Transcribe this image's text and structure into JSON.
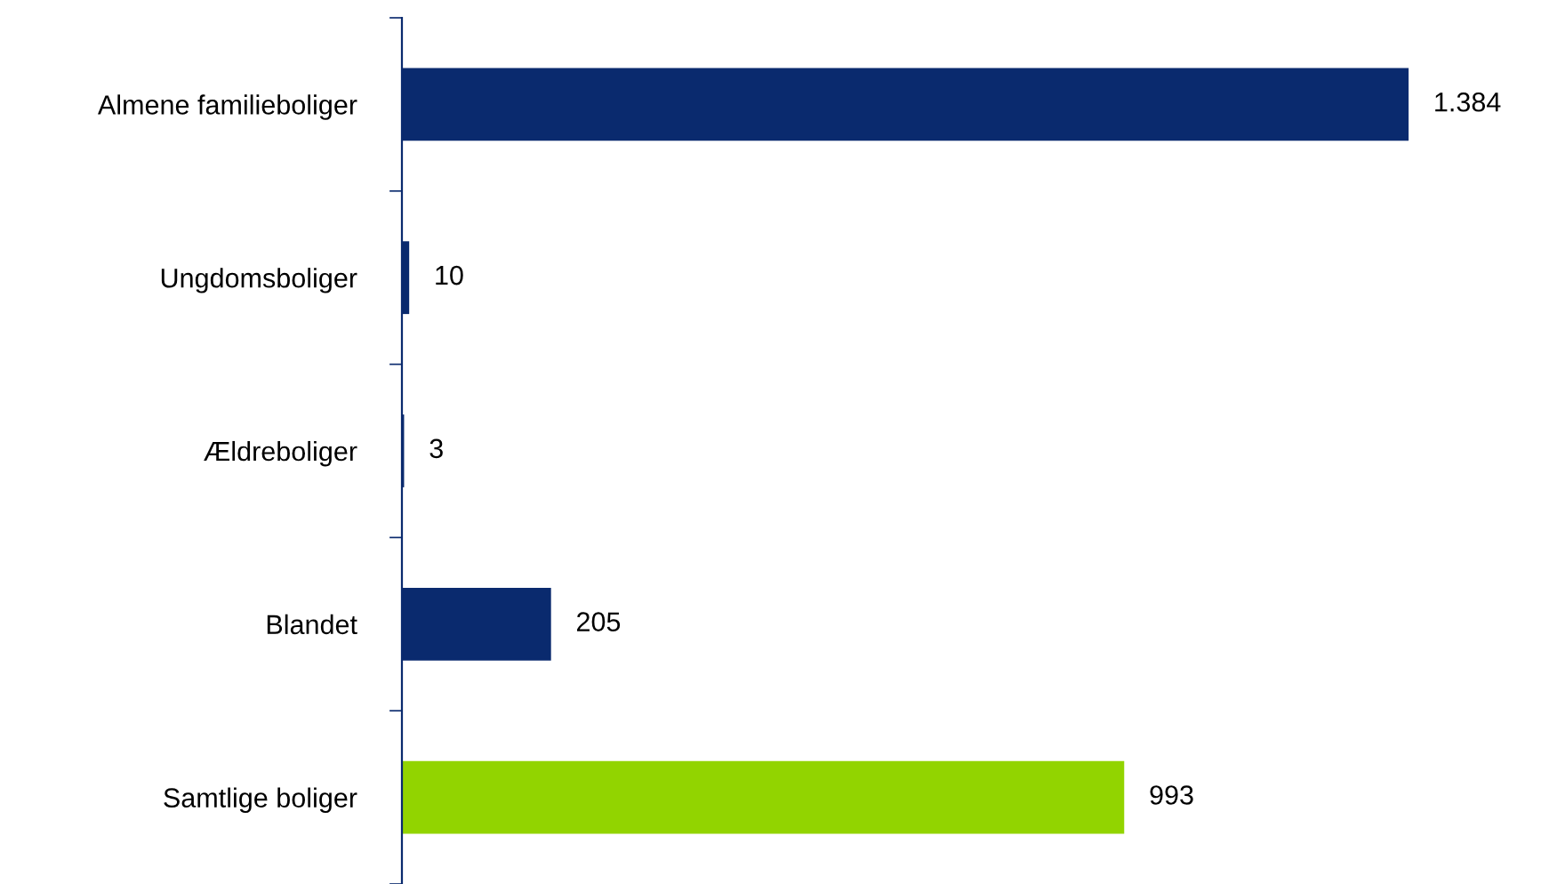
{
  "chart_data": {
    "type": "bar",
    "orientation": "horizontal",
    "categories": [
      "Almene familieboliger",
      "Ungdomsboliger",
      "Ældreboliger",
      "Blandet",
      "Samtlige boliger"
    ],
    "values": [
      1384,
      10,
      3,
      205,
      993
    ],
    "value_labels": [
      "1.384",
      "10",
      "3",
      "205",
      "993"
    ],
    "colors": [
      "#0a2a6e",
      "#0a2a6e",
      "#0a2a6e",
      "#0a2a6e",
      "#92d400"
    ],
    "tick_labels": "y",
    "grid": false,
    "legend": false
  }
}
